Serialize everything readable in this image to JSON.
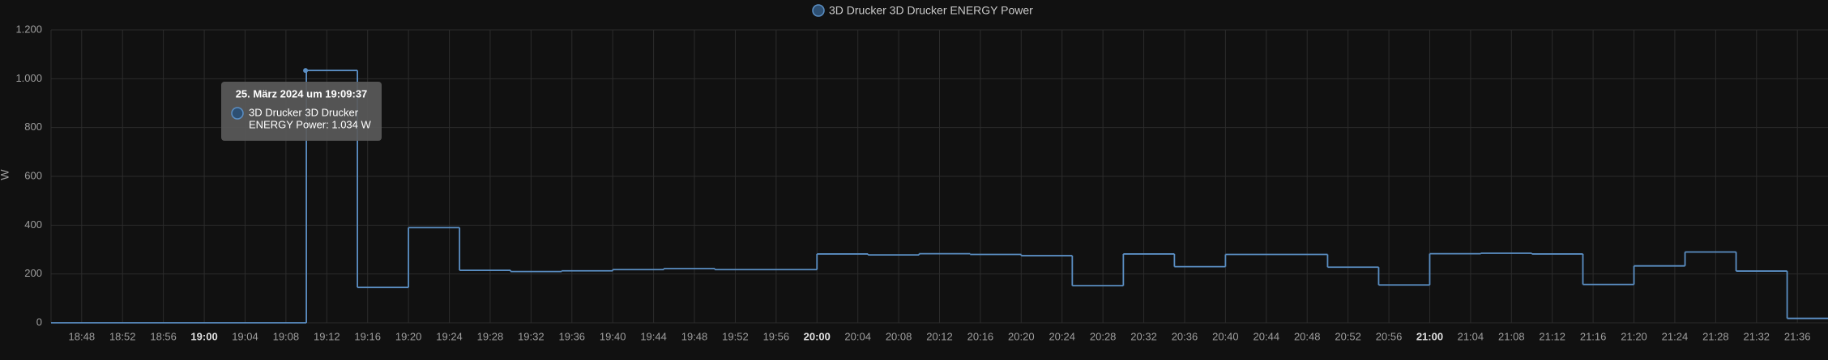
{
  "chart_data": {
    "type": "step",
    "legend": "3D Drucker 3D Drucker ENERGY Power",
    "ylabel": "W",
    "x": [
      "18:45",
      "19:10",
      "19:15",
      "19:20",
      "19:25",
      "19:30",
      "19:35",
      "19:40",
      "19:45",
      "19:50",
      "20:00",
      "20:05",
      "20:10",
      "20:15",
      "20:20",
      "20:25",
      "20:30",
      "20:35",
      "20:40",
      "20:50",
      "20:55",
      "21:00",
      "21:05",
      "21:10",
      "21:15",
      "21:20",
      "21:25",
      "21:30",
      "21:35"
    ],
    "series": [
      {
        "name": "3D Drucker 3D Drucker ENERGY Power",
        "color": "#5b8fc4",
        "values": [
          0,
          1034,
          145,
          390,
          215,
          210,
          213,
          218,
          222,
          218,
          282,
          278,
          283,
          280,
          275,
          152,
          282,
          230,
          280,
          228,
          155,
          283,
          285,
          282,
          157,
          233,
          290,
          212,
          18
        ]
      }
    ],
    "xlim": [
      "18:45",
      "21:39"
    ],
    "xticks": [
      "18:48",
      "18:52",
      "18:56",
      "19:00",
      "19:04",
      "19:08",
      "19:12",
      "19:16",
      "19:20",
      "19:24",
      "19:28",
      "19:32",
      "19:36",
      "19:40",
      "19:44",
      "19:48",
      "19:52",
      "19:56",
      "20:00",
      "20:04",
      "20:08",
      "20:12",
      "20:16",
      "20:20",
      "20:24",
      "20:28",
      "20:32",
      "20:36",
      "20:40",
      "20:44",
      "20:48",
      "20:52",
      "20:56",
      "21:00",
      "21:04",
      "21:08",
      "21:12",
      "21:16",
      "21:20",
      "21:24",
      "21:28",
      "21:32",
      "21:36"
    ],
    "ylim": [
      0,
      1200
    ],
    "yticks": [
      0,
      200,
      400,
      600,
      800,
      {
        "value": 1000,
        "label": "1.000"
      },
      {
        "value": 1200,
        "label": "1.200"
      }
    ],
    "grid": true,
    "tooltip": {
      "title": "25. März 2024 um 19:09:37",
      "lines": [
        "3D Drucker 3D Drucker",
        "ENERGY Power: 1.034 W"
      ]
    }
  }
}
